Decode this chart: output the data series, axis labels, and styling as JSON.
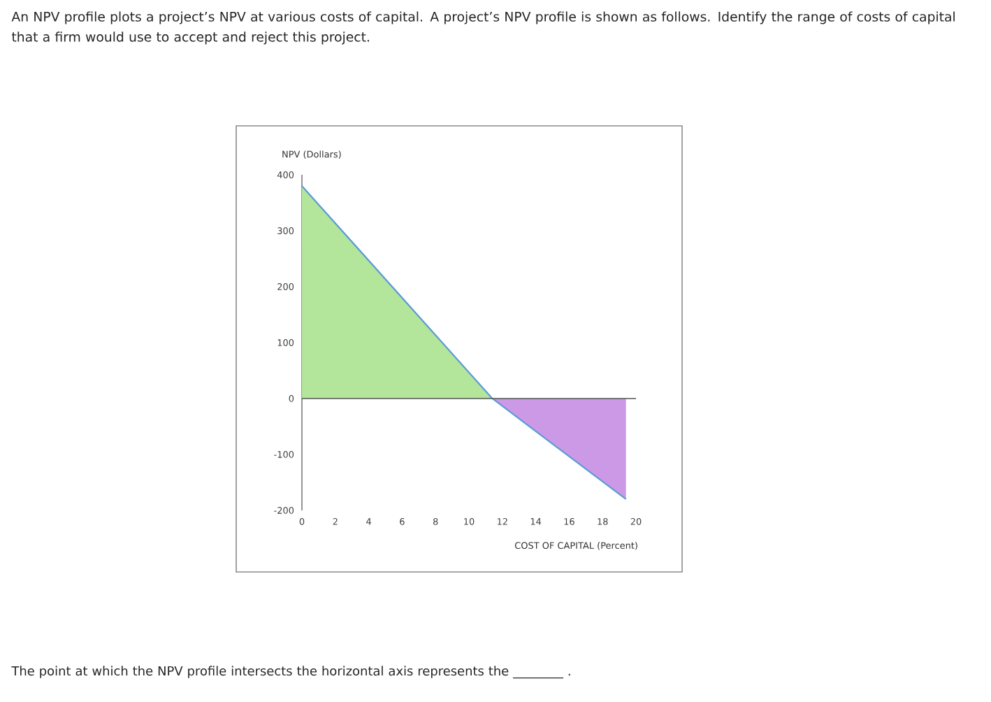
{
  "chart_data": {
    "type": "line",
    "title": "An NPV profile plots a project’s NPV at various costs of capital. A project’s NPV profile is shown as follows. Identify the range of costs of capital that a firm would use to accept and reject this project.",
    "xlabel": "COST OF CAPITAL (Percent)",
    "ylabel": "NPV (Dollars)",
    "series": [
      {
        "type": "area",
        "color": "#b3e59b",
        "x": [
          0,
          11.4
        ],
        "values": [
          380,
          0
        ]
      },
      {
        "type": "area",
        "color": "#cc99e6",
        "x": [
          11.4,
          19.4
        ],
        "values": [
          0,
          -180
        ]
      },
      {
        "color": "#5b9bd5",
        "x": [
          0,
          11.4,
          19.4
        ],
        "values": [
          380,
          0,
          -180
        ]
      }
    ],
    "xlim": [
      0,
      20
    ],
    "xticks": [
      0,
      2,
      4,
      6,
      8,
      10,
      12,
      14,
      16,
      18,
      20
    ],
    "ylim": [
      -200,
      400
    ],
    "yticks": [
      -200,
      -100,
      0,
      100,
      200,
      300,
      400
    ],
    "ref_lines": [
      {
        "axis": "y",
        "value": 0,
        "color": "#555555"
      }
    ],
    "grid": false,
    "annotations": [
      "The point at which the NPV profile intersects the horizontal axis represents the ________ ."
    ]
  }
}
